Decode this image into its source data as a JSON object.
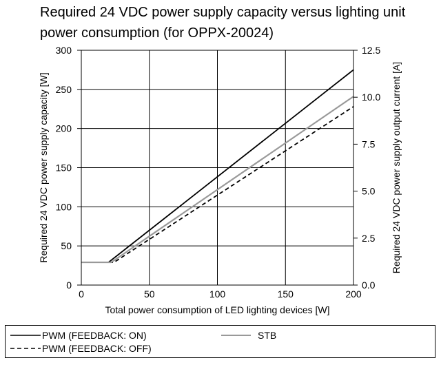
{
  "chart_data": {
    "type": "line",
    "title": "Required 24 VDC power supply capacity versus lighting unit power consumption (for OPPX-20024)",
    "xlabel": "Total power consumption of LED lighting devices [W]",
    "ylabel": "Required 24 VDC power supply capacity [W]",
    "y2label": "Required 24 VDC power supply output current [A]",
    "xlim": [
      0,
      200
    ],
    "ylim": [
      0,
      300
    ],
    "y2lim": [
      0,
      12.5
    ],
    "x_ticks": [
      "0",
      "50",
      "100",
      "150",
      "200"
    ],
    "y_ticks": [
      "0",
      "50",
      "100",
      "150",
      "200",
      "250",
      "300"
    ],
    "y2_ticks": [
      "0.0",
      "2.5",
      "5.0",
      "7.5",
      "10.0",
      "12.5"
    ],
    "grid": true,
    "legend_position": "bottom",
    "series": [
      {
        "name": "PWM (FEEDBACK: ON)",
        "color": "#000000",
        "style": "solid",
        "points": [
          [
            0,
            29
          ],
          [
            20,
            29
          ],
          [
            200,
            275
          ]
        ]
      },
      {
        "name": "PWM (FEEDBACK: OFF)",
        "color": "#000000",
        "style": "dashed",
        "points": [
          [
            0,
            29
          ],
          [
            24,
            29
          ],
          [
            200,
            228
          ]
        ]
      },
      {
        "name": "STB",
        "color": "#999999",
        "style": "solid",
        "points": [
          [
            0,
            29
          ],
          [
            22,
            29
          ],
          [
            200,
            241
          ]
        ]
      }
    ]
  }
}
